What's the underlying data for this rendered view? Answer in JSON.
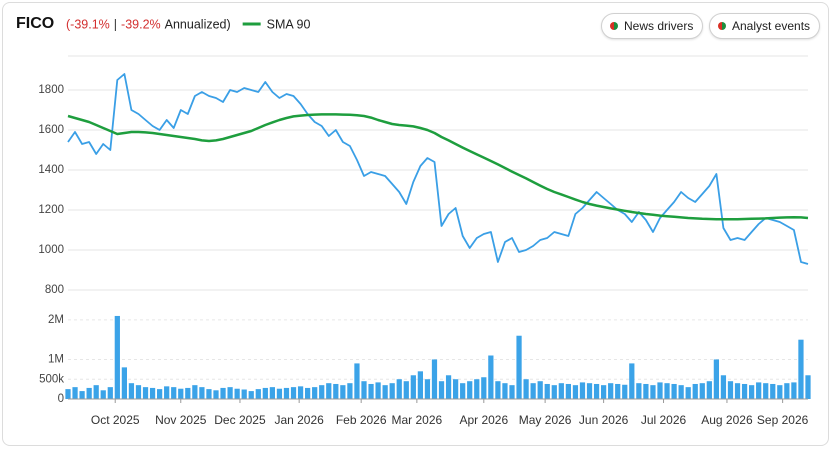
{
  "header": {
    "ticker": "FICO",
    "parts": [
      {
        "text": "(-39.1%",
        "color": "#d32f2f"
      },
      {
        "text": "|",
        "color": "#333333"
      },
      {
        "text": "-39.2%",
        "color": "#d32f2f"
      },
      {
        "text": "Annualized)",
        "color": "#222222"
      }
    ]
  },
  "buttons": [
    "News drivers",
    "Analyst events"
  ],
  "chart_data": [
    {
      "type": "line",
      "xlim": [
        0,
        105
      ],
      "ylim": [
        750,
        1970
      ],
      "yticks": [
        800,
        1000,
        1200,
        1400,
        1600,
        1800
      ],
      "grid": true,
      "legend": "top-left",
      "series": [
        {
          "name": "FICO",
          "color": "#3a9fe6",
          "values": [
            1540,
            1590,
            1530,
            1540,
            1480,
            1530,
            1500,
            1850,
            1880,
            1700,
            1680,
            1650,
            1620,
            1600,
            1650,
            1610,
            1700,
            1680,
            1770,
            1790,
            1770,
            1760,
            1740,
            1800,
            1790,
            1810,
            1800,
            1790,
            1840,
            1790,
            1760,
            1780,
            1770,
            1730,
            1680,
            1640,
            1620,
            1570,
            1600,
            1540,
            1520,
            1450,
            1370,
            1390,
            1380,
            1370,
            1330,
            1290,
            1230,
            1340,
            1420,
            1460,
            1440,
            1120,
            1180,
            1210,
            1070,
            1010,
            1060,
            1080,
            1090,
            940,
            1040,
            1060,
            990,
            1000,
            1020,
            1050,
            1060,
            1090,
            1080,
            1070,
            1180,
            1210,
            1250,
            1290,
            1260,
            1230,
            1200,
            1180,
            1140,
            1190,
            1150,
            1090,
            1160,
            1200,
            1240,
            1290,
            1260,
            1240,
            1280,
            1320,
            1380,
            1110,
            1050,
            1060,
            1050,
            1090,
            1130,
            1160,
            1150,
            1140,
            1120,
            1100,
            940,
            930
          ]
        },
        {
          "name": "SMA 90",
          "color": "#1e9e3e",
          "values": [
            1670,
            1660,
            1650,
            1640,
            1625,
            1610,
            1595,
            1580,
            1585,
            1590,
            1590,
            1588,
            1585,
            1580,
            1575,
            1570,
            1565,
            1560,
            1555,
            1548,
            1545,
            1548,
            1555,
            1565,
            1575,
            1585,
            1595,
            1610,
            1625,
            1638,
            1650,
            1660,
            1668,
            1672,
            1675,
            1677,
            1678,
            1678,
            1678,
            1677,
            1676,
            1674,
            1670,
            1662,
            1650,
            1640,
            1630,
            1625,
            1622,
            1618,
            1610,
            1600,
            1585,
            1565,
            1548,
            1530,
            1512,
            1495,
            1478,
            1462,
            1445,
            1428,
            1410,
            1392,
            1375,
            1358,
            1340,
            1322,
            1305,
            1290,
            1278,
            1265,
            1252,
            1240,
            1230,
            1222,
            1215,
            1208,
            1202,
            1196,
            1190,
            1185,
            1180,
            1176,
            1172,
            1169,
            1166,
            1163,
            1160,
            1158,
            1156,
            1155,
            1154,
            1154,
            1154,
            1154,
            1155,
            1156,
            1157,
            1158,
            1160,
            1162,
            1163,
            1164,
            1163,
            1160
          ]
        }
      ]
    },
    {
      "type": "bar",
      "color": "#3ba3e8",
      "xlim": [
        0,
        105
      ],
      "ylim": [
        0,
        2200000
      ],
      "yticks": [
        0,
        {
          "value": 500000,
          "label": "500k"
        },
        {
          "value": 1000000,
          "label": "1M"
        },
        {
          "value": 2000000,
          "label": "2M"
        }
      ],
      "xticks": [
        {
          "value": 6.7,
          "label": "Oct 2025"
        },
        {
          "value": 16,
          "label": "Nov 2025"
        },
        {
          "value": 24.4,
          "label": "Dec 2025"
        },
        {
          "value": 32.8,
          "label": "Jan 2026"
        },
        {
          "value": 41.6,
          "label": "Feb 2026"
        },
        {
          "value": 49.5,
          "label": "Mar 2026"
        },
        {
          "value": 59,
          "label": "Apr 2026"
        },
        {
          "value": 67.7,
          "label": "May 2026"
        },
        {
          "value": 76,
          "label": "Jun 2026"
        },
        {
          "value": 84.5,
          "label": "Jul 2026"
        },
        {
          "value": 93.5,
          "label": "Aug 2026"
        },
        {
          "value": 101.4,
          "label": "Sep 2026"
        }
      ],
      "values": [
        250000,
        300000,
        200000,
        280000,
        350000,
        220000,
        300000,
        2100000,
        800000,
        400000,
        350000,
        300000,
        280000,
        250000,
        320000,
        300000,
        260000,
        280000,
        350000,
        300000,
        250000,
        220000,
        280000,
        300000,
        260000,
        240000,
        200000,
        250000,
        280000,
        300000,
        260000,
        280000,
        300000,
        320000,
        280000,
        300000,
        350000,
        400000,
        380000,
        350000,
        400000,
        900000,
        450000,
        380000,
        420000,
        350000,
        400000,
        500000,
        450000,
        600000,
        700000,
        500000,
        1000000,
        450000,
        600000,
        500000,
        400000,
        450000,
        500000,
        550000,
        1100000,
        450000,
        400000,
        350000,
        1600000,
        500000,
        400000,
        450000,
        380000,
        350000,
        400000,
        380000,
        350000,
        420000,
        400000,
        380000,
        350000,
        400000,
        380000,
        360000,
        900000,
        400000,
        380000,
        350000,
        420000,
        400000,
        380000,
        350000,
        300000,
        380000,
        400000,
        450000,
        1000000,
        600000,
        450000,
        400000,
        380000,
        350000,
        420000,
        400000,
        380000,
        350000,
        400000,
        420000,
        1500000,
        600000
      ]
    }
  ]
}
